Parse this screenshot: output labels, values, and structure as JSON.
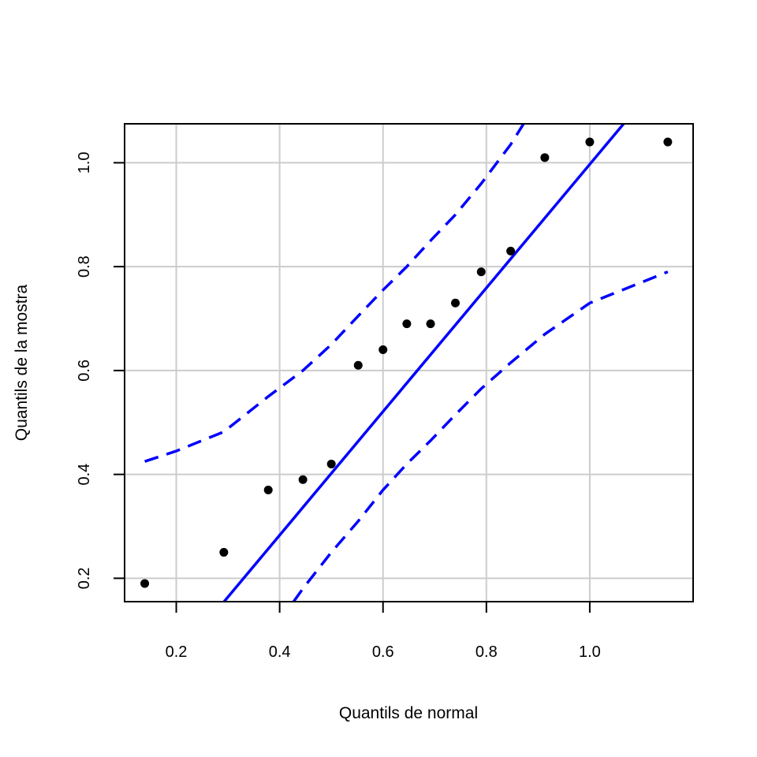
{
  "chart_data": {
    "type": "scatter",
    "title": "",
    "xlabel": "Quantils de normal",
    "ylabel": "Quantils de la mostra",
    "xlim": [
      0.1,
      1.2
    ],
    "ylim": [
      0.155,
      1.075
    ],
    "x_ticks": [
      0.2,
      0.4,
      0.6,
      0.8,
      1.0
    ],
    "x_tick_labels": [
      "0.2",
      "0.4",
      "0.6",
      "0.8",
      "1.0"
    ],
    "y_ticks": [
      0.2,
      0.4,
      0.6,
      0.8,
      1.0
    ],
    "y_tick_labels": [
      "0.2",
      "0.4",
      "0.6",
      "0.8",
      "1.0"
    ],
    "grid": true,
    "points": {
      "x": [
        0.139,
        0.292,
        0.378,
        0.445,
        0.5,
        0.552,
        0.6,
        0.646,
        0.692,
        0.74,
        0.79,
        0.847,
        0.913,
        1.0,
        1.151
      ],
      "y": [
        0.19,
        0.25,
        0.37,
        0.39,
        0.42,
        0.61,
        0.64,
        0.69,
        0.69,
        0.73,
        0.79,
        0.83,
        1.01,
        1.04,
        1.04
      ]
    },
    "reference_line": {
      "intercept": -0.193,
      "slope": 1.19
    },
    "upper_envelope": {
      "x": [
        0.139,
        0.2,
        0.292,
        0.378,
        0.445,
        0.5,
        0.552,
        0.6,
        0.646,
        0.692,
        0.74,
        0.79,
        0.847,
        0.872
      ],
      "y": [
        0.425,
        0.445,
        0.482,
        0.55,
        0.6,
        0.65,
        0.705,
        0.755,
        0.8,
        0.85,
        0.9,
        0.96,
        1.035,
        1.075
      ]
    },
    "lower_envelope": {
      "x": [
        0.427,
        0.445,
        0.5,
        0.552,
        0.6,
        0.646,
        0.692,
        0.74,
        0.79,
        0.847,
        0.913,
        1.0,
        1.151
      ],
      "y": [
        0.155,
        0.18,
        0.25,
        0.31,
        0.37,
        0.42,
        0.465,
        0.515,
        0.565,
        0.615,
        0.67,
        0.73,
        0.79
      ]
    },
    "colors": {
      "points": "#000000",
      "reference_line": "#0000ff",
      "envelope": "#0000ff",
      "grid": "#cccccc",
      "frame": "#000000"
    }
  }
}
